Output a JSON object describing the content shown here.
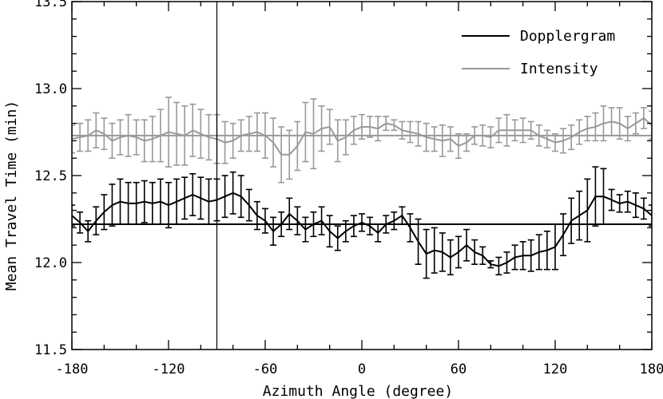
{
  "chart_data": {
    "type": "line",
    "xlabel": "Azimuth Angle (degree)",
    "ylabel": "Mean Travel Time (min)",
    "xlim": [
      -180,
      180
    ],
    "ylim": [
      11.5,
      13.5
    ],
    "xticks": [
      -180,
      -120,
      -60,
      0,
      60,
      120,
      180
    ],
    "yticks": [
      11.5,
      12.0,
      12.5,
      13.0,
      13.5
    ],
    "ytick_labels": [
      "11.5",
      "12.0",
      "12.5",
      "13.0",
      "13.5"
    ],
    "grid": false,
    "legend_position": "top-right",
    "vertical_line_x": -90,
    "x": [
      -180,
      -175,
      -170,
      -165,
      -160,
      -155,
      -150,
      -145,
      -140,
      -135,
      -130,
      -125,
      -120,
      -115,
      -110,
      -105,
      -100,
      -95,
      -90,
      -85,
      -80,
      -75,
      -70,
      -65,
      -60,
      -55,
      -50,
      -45,
      -40,
      -35,
      -30,
      -25,
      -20,
      -15,
      -10,
      -5,
      0,
      5,
      10,
      15,
      20,
      25,
      30,
      35,
      40,
      45,
      50,
      55,
      60,
      65,
      70,
      75,
      80,
      85,
      90,
      95,
      100,
      105,
      110,
      115,
      120,
      125,
      130,
      135,
      140,
      145,
      150,
      155,
      160,
      165,
      170,
      175,
      180
    ],
    "series": [
      {
        "name": "Dopplergram",
        "color": "#000000",
        "mean": 12.22,
        "values": [
          12.27,
          12.23,
          12.18,
          12.24,
          12.29,
          12.33,
          12.35,
          12.34,
          12.34,
          12.35,
          12.34,
          12.35,
          12.33,
          12.35,
          12.37,
          12.39,
          12.37,
          12.35,
          12.36,
          12.38,
          12.4,
          12.38,
          12.33,
          12.27,
          12.24,
          12.18,
          12.22,
          12.28,
          12.24,
          12.19,
          12.22,
          12.24,
          12.18,
          12.14,
          12.18,
          12.21,
          12.23,
          12.21,
          12.17,
          12.22,
          12.24,
          12.27,
          12.2,
          12.12,
          12.05,
          12.07,
          12.06,
          12.03,
          12.06,
          12.1,
          12.06,
          12.04,
          11.99,
          11.98,
          12.0,
          12.03,
          12.04,
          12.04,
          12.06,
          12.07,
          12.09,
          12.16,
          12.24,
          12.27,
          12.3,
          12.38,
          12.38,
          12.36,
          12.34,
          12.35,
          12.33,
          12.31,
          12.27
        ],
        "errors": [
          0.06,
          0.06,
          0.06,
          0.08,
          0.1,
          0.12,
          0.13,
          0.12,
          0.12,
          0.12,
          0.12,
          0.13,
          0.13,
          0.13,
          0.12,
          0.12,
          0.12,
          0.13,
          0.12,
          0.12,
          0.12,
          0.12,
          0.09,
          0.08,
          0.07,
          0.08,
          0.07,
          0.09,
          0.08,
          0.07,
          0.07,
          0.08,
          0.09,
          0.07,
          0.06,
          0.06,
          0.05,
          0.05,
          0.05,
          0.05,
          0.05,
          0.05,
          0.08,
          0.13,
          0.14,
          0.13,
          0.11,
          0.1,
          0.09,
          0.09,
          0.07,
          0.05,
          0.02,
          0.05,
          0.06,
          0.07,
          0.08,
          0.09,
          0.1,
          0.11,
          0.13,
          0.12,
          0.13,
          0.14,
          0.18,
          0.17,
          0.16,
          0.06,
          0.05,
          0.06,
          0.07,
          0.06,
          0.06
        ]
      },
      {
        "name": "Intensity",
        "color": "#999999",
        "mean": 12.73,
        "values": [
          12.71,
          12.72,
          12.73,
          12.76,
          12.74,
          12.7,
          12.72,
          12.73,
          12.72,
          12.7,
          12.71,
          12.73,
          12.75,
          12.74,
          12.73,
          12.76,
          12.74,
          12.72,
          12.71,
          12.69,
          12.7,
          12.73,
          12.74,
          12.75,
          12.73,
          12.69,
          12.62,
          12.62,
          12.67,
          12.75,
          12.74,
          12.77,
          12.78,
          12.7,
          12.72,
          12.76,
          12.78,
          12.78,
          12.77,
          12.8,
          12.79,
          12.76,
          12.75,
          12.74,
          12.72,
          12.71,
          12.7,
          12.71,
          12.67,
          12.69,
          12.73,
          12.73,
          12.72,
          12.76,
          12.76,
          12.76,
          12.76,
          12.76,
          12.73,
          12.71,
          12.69,
          12.7,
          12.72,
          12.75,
          12.77,
          12.78,
          12.8,
          12.81,
          12.8,
          12.77,
          12.8,
          12.83,
          12.79
        ],
        "errors": [
          0.08,
          0.08,
          0.09,
          0.1,
          0.09,
          0.1,
          0.1,
          0.12,
          0.1,
          0.12,
          0.13,
          0.15,
          0.2,
          0.18,
          0.17,
          0.15,
          0.14,
          0.13,
          0.14,
          0.12,
          0.1,
          0.09,
          0.1,
          0.11,
          0.13,
          0.14,
          0.16,
          0.14,
          0.14,
          0.17,
          0.2,
          0.13,
          0.1,
          0.12,
          0.1,
          0.08,
          0.07,
          0.06,
          0.07,
          0.04,
          0.03,
          0.05,
          0.06,
          0.07,
          0.08,
          0.07,
          0.09,
          0.07,
          0.07,
          0.05,
          0.05,
          0.06,
          0.06,
          0.07,
          0.09,
          0.06,
          0.07,
          0.05,
          0.06,
          0.05,
          0.05,
          0.07,
          0.07,
          0.07,
          0.07,
          0.08,
          0.1,
          0.08,
          0.09,
          0.07,
          0.06,
          0.06,
          0.08
        ]
      }
    ]
  }
}
